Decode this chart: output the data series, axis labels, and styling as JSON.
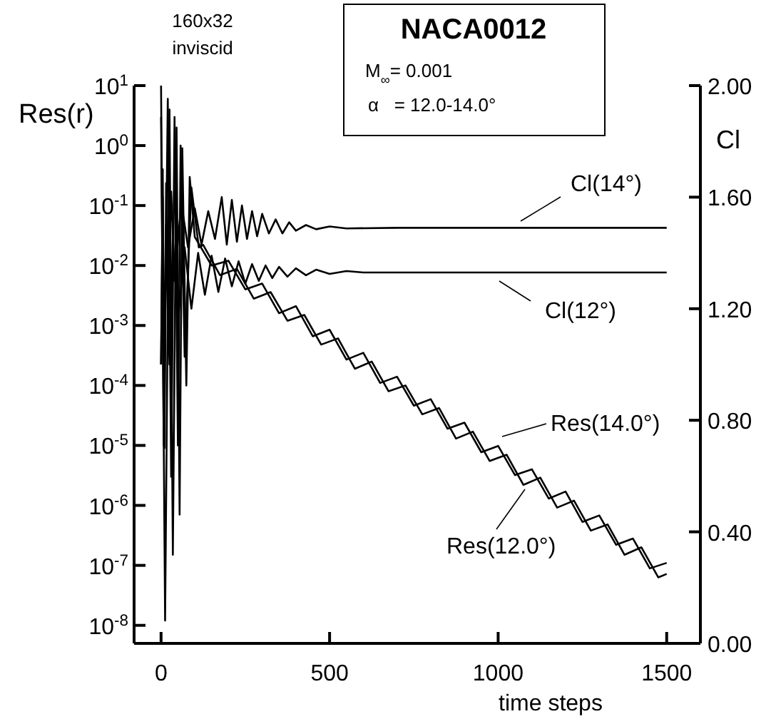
{
  "chart_data": {
    "type": "line",
    "title": "NACA0012",
    "xlabel": "time steps",
    "ylabel": "Res(r)",
    "y2label": "Cl",
    "log": "y",
    "grid": false,
    "line_style": "solid",
    "annotations": [
      "160x32",
      "inviscid",
      "M$_{∞}$= 0.001",
      "α   = 12.0-14.0°"
    ],
    "xlim": [
      -80,
      1600
    ],
    "xticks": [
      0,
      500,
      1000,
      1500
    ],
    "ylim": [
      5e-09,
      10
    ],
    "yticks": [
      {
        "value": 10,
        "label": "10$^{1}$"
      },
      {
        "value": 1,
        "label": "10$^{0}$"
      },
      {
        "value": 0.1,
        "label": "10$^{-1}$"
      },
      {
        "value": 0.01,
        "label": "10$^{-2}$"
      },
      {
        "value": 0.001,
        "label": "10$^{-3}$"
      },
      {
        "value": 0.0001,
        "label": "10$^{-4}$"
      },
      {
        "value": 1e-05,
        "label": "10$^{-5}$"
      },
      {
        "value": 1e-06,
        "label": "10$^{-6}$"
      },
      {
        "value": 1e-07,
        "label": "10$^{-7}$"
      },
      {
        "value": 1e-08,
        "label": "10$^{-8}$"
      }
    ],
    "y2lim": [
      0,
      2
    ],
    "y2ticks": [
      {
        "value": 0,
        "label": "0.00"
      },
      {
        "value": 0.4,
        "label": "0.40"
      },
      {
        "value": 0.8,
        "label": "0.80"
      },
      {
        "value": 1.2,
        "label": "1.20"
      },
      {
        "value": 1.6,
        "label": "1.60"
      },
      {
        "value": 2,
        "label": "2.00"
      }
    ],
    "series": [
      {
        "name": "Cl(14°)",
        "color": "#000000",
        "axis": "y2",
        "x": [
          0,
          5,
          10,
          15,
          20,
          30,
          40,
          60,
          80,
          100,
          120,
          140,
          160,
          180,
          195,
          210,
          225,
          240,
          255,
          270,
          285,
          300,
          320,
          340,
          360,
          380,
          400,
          430,
          460,
          500,
          550,
          700,
          1500
        ],
        "values": [
          1.0,
          1.7,
          0.8,
          1.65,
          1.2,
          1.62,
          1.3,
          1.58,
          1.42,
          1.56,
          1.43,
          1.55,
          1.45,
          1.6,
          1.43,
          1.59,
          1.44,
          1.57,
          1.45,
          1.55,
          1.46,
          1.54,
          1.47,
          1.52,
          1.47,
          1.51,
          1.48,
          1.5,
          1.485,
          1.495,
          1.488,
          1.49,
          1.49
        ]
      },
      {
        "name": "Cl(12°)",
        "color": "#000000",
        "axis": "y2",
        "x": [
          0,
          5,
          10,
          15,
          25,
          35,
          50,
          70,
          90,
          110,
          130,
          150,
          170,
          190,
          210,
          230,
          250,
          270,
          290,
          310,
          330,
          350,
          375,
          400,
          430,
          460,
          500,
          550,
          600,
          1500
        ],
        "values": [
          1.0,
          1.6,
          0.7,
          1.5,
          1.0,
          1.45,
          1.15,
          1.42,
          1.2,
          1.4,
          1.25,
          1.39,
          1.26,
          1.38,
          1.28,
          1.37,
          1.29,
          1.36,
          1.3,
          1.355,
          1.31,
          1.35,
          1.315,
          1.345,
          1.32,
          1.34,
          1.325,
          1.335,
          1.33,
          1.33
        ]
      },
      {
        "name": "Res(14.0°)",
        "color": "#000000",
        "x": [
          0,
          12,
          25,
          35,
          46,
          55,
          63,
          75,
          85,
          100,
          150,
          200,
          250,
          300,
          350,
          400,
          450,
          500,
          550,
          600,
          650,
          700,
          750,
          800,
          850,
          900,
          950,
          1000,
          1050,
          1100,
          1150,
          1200,
          1250,
          1300,
          1350,
          1400,
          1450,
          1500
        ],
        "values": [
          10,
          1.2e-08,
          4,
          1.5e-07,
          2,
          7e-07,
          0.9,
          0.0001,
          0.3,
          0.03,
          0.01,
          0.012,
          0.004,
          0.005,
          0.0016,
          0.0021,
          0.00066,
          0.00085,
          0.00027,
          0.00035,
          0.00011,
          0.00014,
          4.6e-05,
          5.9e-05,
          1.9e-05,
          2.4e-05,
          7.7e-06,
          9.8e-06,
          3.2e-06,
          4e-06,
          1.3e-06,
          1.7e-06,
          5.3e-07,
          6.8e-07,
          2.2e-07,
          2.8e-07,
          8.9e-08,
          1.1e-07
        ]
      },
      {
        "name": "Res(12.0°)",
        "color": "#000000",
        "x": [
          0,
          8,
          20,
          30,
          40,
          50,
          58,
          70,
          90,
          112,
          125,
          175,
          225,
          275,
          325,
          375,
          425,
          475,
          525,
          575,
          625,
          675,
          725,
          775,
          825,
          875,
          925,
          975,
          1025,
          1075,
          1125,
          1175,
          1225,
          1275,
          1325,
          1375,
          1425,
          1475,
          1500
        ],
        "values": [
          3,
          1e-05,
          6,
          3e-06,
          3,
          1e-05,
          1,
          0.0003,
          0.2,
          0.02,
          0.022,
          0.0069,
          0.0088,
          0.0028,
          0.0036,
          0.0012,
          0.0015,
          0.00048,
          0.00061,
          0.00019,
          0.00025,
          8e-05,
          0.0001,
          3.3e-05,
          4.2e-05,
          1.3e-05,
          1.7e-05,
          5.5e-06,
          7e-06,
          2.2e-06,
          2.9e-06,
          9.2e-07,
          1.2e-06,
          3.8e-07,
          4.8e-07,
          1.5e-07,
          2e-07,
          6.3e-08,
          7.2e-08
        ]
      }
    ]
  }
}
